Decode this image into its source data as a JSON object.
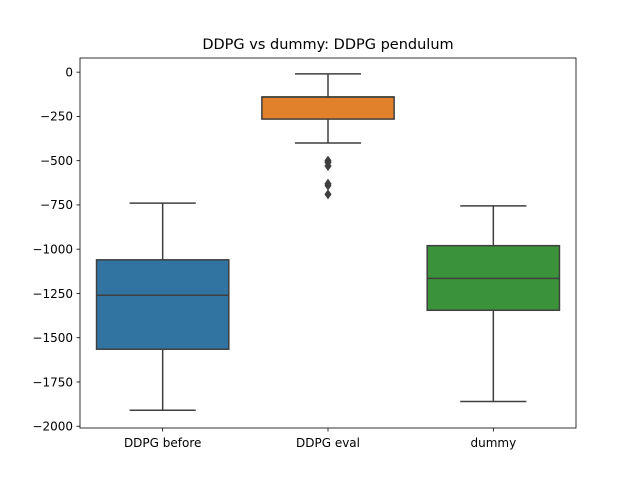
{
  "chart_data": {
    "type": "box",
    "title": "DDPG vs dummy: DDPG pendulum",
    "xlabel": "",
    "ylabel": "",
    "ylim": [
      -2010,
      80
    ],
    "yticks": [
      0,
      -250,
      -500,
      -750,
      -1000,
      -1250,
      -1500,
      -1750,
      -2000
    ],
    "ytick_labels": [
      "0",
      "−250",
      "−500",
      "−750",
      "−1000",
      "−1250",
      "−1500",
      "−1750",
      "−2000"
    ],
    "categories": [
      "DDPG before",
      "DDPG eval",
      "dummy"
    ],
    "boxes": [
      {
        "whisker_low": -1910,
        "q1": -1565,
        "median": -1260,
        "q3": -1060,
        "whisker_high": -740,
        "outliers": [],
        "color": "#3274a1"
      },
      {
        "whisker_low": -400,
        "q1": -265,
        "median": -140,
        "q3": -140,
        "whisker_high": -10,
        "outliers": [
          -500,
          -510,
          -530,
          -630,
          -640,
          -690
        ],
        "color": "#e1812c"
      },
      {
        "whisker_low": -1860,
        "q1": -1345,
        "median": -1165,
        "q3": -980,
        "whisker_high": -755,
        "outliers": [],
        "color": "#3a923a"
      }
    ],
    "grid": false,
    "legend": "none"
  }
}
